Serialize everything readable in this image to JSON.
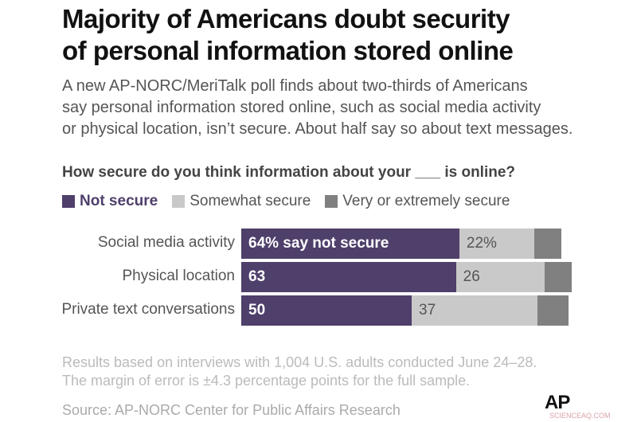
{
  "title_lines": [
    "Majority of Americans doubt security",
    "of personal information stored online"
  ],
  "subtitle_lines": [
    "A new AP-NORC/MeriTalk poll finds about two-thirds of Americans",
    "say personal information stored online, such as social media activity",
    "or physical location, isn’t secure. About half say so about text messages."
  ],
  "chart_data": {
    "type": "bar",
    "orientation": "horizontal",
    "stacked": true,
    "question": "How secure do you think information about your ___ is online?",
    "categories": [
      "Social media activity",
      "Physical location",
      "Private text conversations"
    ],
    "series": [
      {
        "name": "Not secure",
        "color": "#4f3f6b",
        "values": [
          64,
          63,
          50
        ],
        "labels": [
          "64% say not secure",
          "63",
          "50"
        ]
      },
      {
        "name": "Somewhat secure",
        "color": "#c9c9c9",
        "values": [
          22,
          26,
          37
        ],
        "labels": [
          "22%",
          "26",
          "37"
        ]
      },
      {
        "name": "Very or extremely secure",
        "color": "#808080",
        "values": [
          8,
          8,
          9
        ],
        "labels": [
          "",
          "",
          ""
        ]
      }
    ],
    "legend_position": "top-left",
    "grid": false
  },
  "note_lines": [
    "Results based on interviews with 1,004 U.S. adults conducted June 24–28.",
    "The margin of error is ±4.3 percentage points for the full sample."
  ],
  "source": "Source: AP-NORC Center for Public Affairs Research",
  "logo": "AP",
  "watermark": "SCIENCEAQ.COM"
}
